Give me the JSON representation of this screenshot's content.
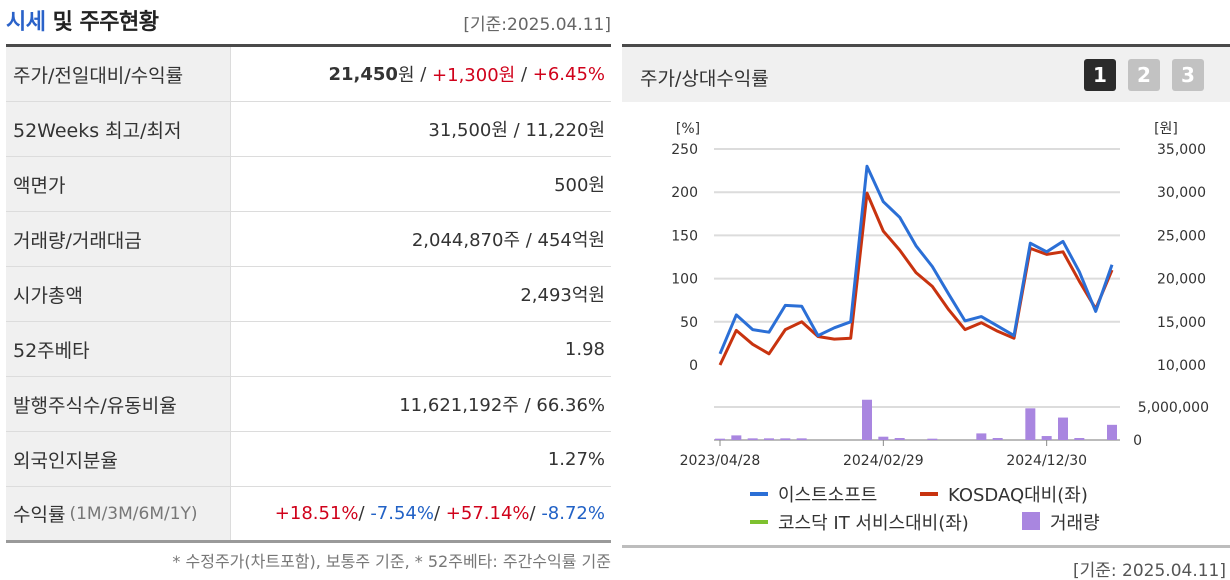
{
  "left": {
    "title_blue": "시세",
    "title_rest": " 및 주주현황",
    "date": "[기준:2025.04.11]",
    "rows": [
      {
        "label": "주가/전일대비/수익률",
        "price": "21,450",
        "price_unit": "원",
        "change": "+1,300원",
        "rate": "+6.45%"
      },
      {
        "label": "52Weeks 최고/최저",
        "value": "31,500원 / 11,220원"
      },
      {
        "label": "액면가",
        "value": "500원"
      },
      {
        "label": "거래량/거래대금",
        "value": "2,044,870주 / 454억원"
      },
      {
        "label": "시가총액",
        "value": "2,493억원"
      },
      {
        "label": "52주베타",
        "value": "1.98"
      },
      {
        "label": "발행주식수/유동비율",
        "value": "11,621,192주 / 66.36%"
      },
      {
        "label": "외국인지분율",
        "value": "1.27%"
      },
      {
        "label": "수익률",
        "sub": "(1M/3M/6M/1Y)",
        "r1m": "+18.51%",
        "r3m": "-7.54%",
        "r6m": "+57.14%",
        "r1y": "-8.72%"
      }
    ],
    "footnote": "* 수정주가(차트포함), 보통주 기준, * 52주베타: 주간수익률 기준"
  },
  "right": {
    "title": "주가/상대수익률",
    "tabs": [
      "1",
      "2",
      "3"
    ],
    "date": "[기준: 2025.04.11]"
  },
  "chart_data": {
    "type": "line",
    "left_unit": "[%]",
    "right_unit": "[원]",
    "left_axis": {
      "ticks": [
        "250",
        "200",
        "150",
        "100",
        "50",
        "0"
      ],
      "range": [
        0,
        250
      ]
    },
    "right_axis": {
      "ticks": [
        "35,000",
        "30,000",
        "25,000",
        "20,000",
        "15,000",
        "10,000"
      ],
      "range": [
        10000,
        35000
      ]
    },
    "volume_axis": {
      "ticks": [
        "5,000,000",
        "0"
      ],
      "range": [
        0,
        5000000
      ]
    },
    "x_labels": [
      {
        "label": "2023/04/28",
        "i": 0
      },
      {
        "label": "2024/02/29",
        "i": 10
      },
      {
        "label": "2024/12/30",
        "i": 20
      }
    ],
    "x_count": 25,
    "legend": [
      {
        "name": "이스트소프트",
        "color": "#2b6fd6",
        "shape": "line"
      },
      {
        "name": "KOSDAQ대비(좌)",
        "color": "#c8330f",
        "shape": "line"
      },
      {
        "name": "코스닥 IT 서비스대비(좌)",
        "color": "#7ec12f",
        "shape": "line"
      },
      {
        "name": "거래량",
        "color": "#a986e0",
        "shape": "box"
      }
    ],
    "series": [
      {
        "name": "이스트소프트",
        "axis": "left",
        "color": "#2b6fd6",
        "values": [
          13,
          58,
          41,
          38,
          69,
          68,
          34,
          43,
          50,
          230,
          189,
          171,
          138,
          114,
          82,
          51,
          56,
          45,
          34,
          141,
          131,
          143,
          108,
          62,
          116
        ]
      },
      {
        "name": "KOSDAQ대비(좌)",
        "axis": "left",
        "color": "#c8330f",
        "values": [
          0,
          40,
          24,
          13,
          41,
          50,
          33,
          30,
          31,
          199,
          155,
          133,
          107,
          91,
          64,
          41,
          49,
          39,
          31,
          135,
          128,
          131,
          97,
          65,
          110
        ]
      }
    ],
    "volume": [
      200000,
      700000,
      250000,
      250000,
      250000,
      250000,
      0,
      0,
      0,
      6100000,
      500000,
      300000,
      0,
      200000,
      0,
      0,
      1000000,
      300000,
      0,
      4800000,
      600000,
      3400000,
      300000,
      0,
      2300000
    ]
  }
}
